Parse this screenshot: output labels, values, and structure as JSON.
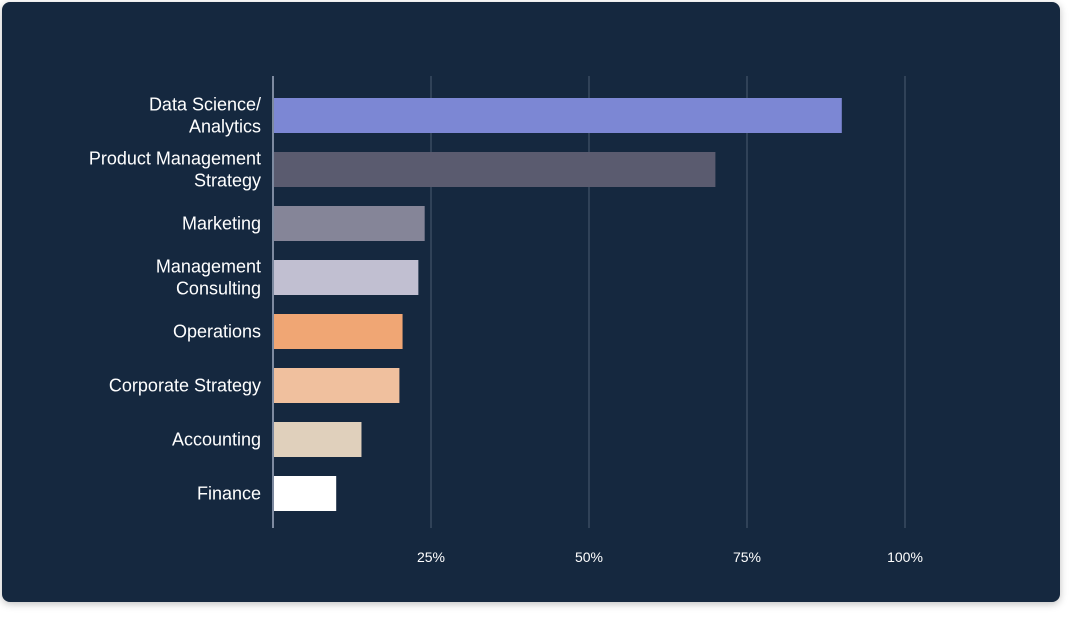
{
  "chart_data": {
    "type": "bar",
    "orientation": "horizontal",
    "categories": [
      [
        "Data Science/",
        "Analytics"
      ],
      [
        "Product Management",
        "Strategy"
      ],
      [
        "Marketing"
      ],
      [
        "Management",
        "Consulting"
      ],
      [
        "Operations"
      ],
      [
        "Corporate Strategy"
      ],
      [
        "Accounting"
      ],
      [
        "Finance"
      ]
    ],
    "values": [
      90,
      70,
      24,
      23,
      20.5,
      20,
      14,
      10
    ],
    "colors": [
      "#7c87d4",
      "#5a5b6f",
      "#858598",
      "#c1bfd1",
      "#f0a674",
      "#f0c09e",
      "#e0d0bc",
      "#ffffff"
    ],
    "xlim": [
      0,
      100
    ],
    "xticks": [
      25,
      50,
      75,
      100
    ],
    "xtick_labels": [
      "25%",
      "50%",
      "75%",
      "100%"
    ],
    "grid": true,
    "title": "",
    "xlabel": "",
    "ylabel": ""
  }
}
